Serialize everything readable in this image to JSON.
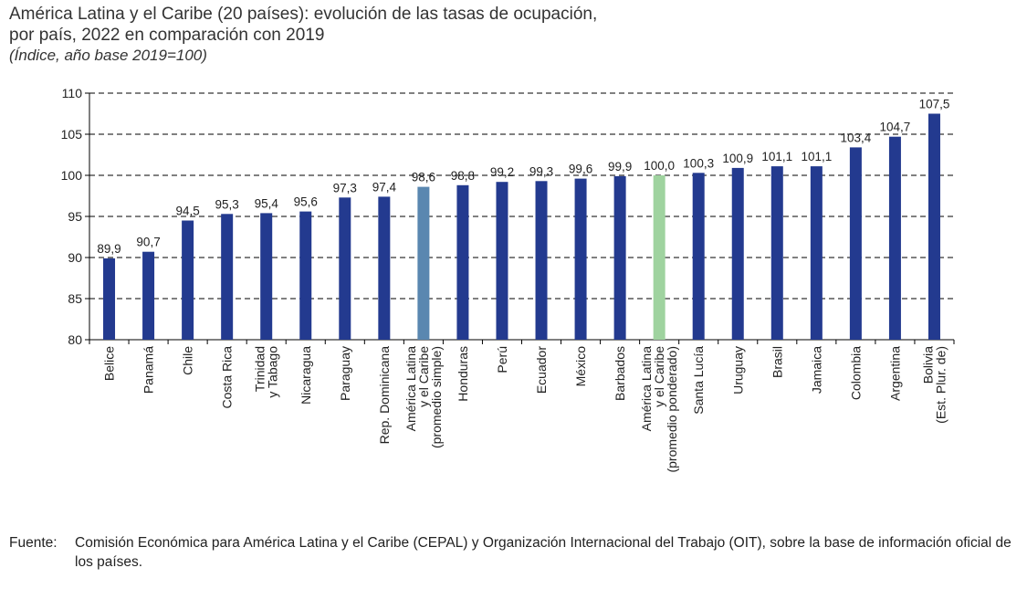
{
  "title_line1": "América Latina y el Caribe (20 países): evolución de las tasas de ocupación,",
  "title_line2": "por país, 2022 en comparación con 2019",
  "subtitle": "(Índice, año base 2019=100)",
  "source_label": "Fuente:",
  "source_text": "Comisión Económica para América Latina y el Caribe (CEPAL) y Organización Internacional del Trabajo (OIT), sobre la base de información oficial de los países.",
  "colors": {
    "country": "#233a8f",
    "simple_average": "#5a87b0",
    "weighted_average": "#9fd39f",
    "grid": "#000000"
  },
  "chart_data": {
    "type": "bar",
    "title": "América Latina y el Caribe (20 países): evolución de las tasas de ocupación, por país, 2022 en comparación con 2019",
    "ylabel": "",
    "xlabel": "",
    "ylim": [
      80,
      110
    ],
    "yticks": [
      "80",
      "85",
      "90",
      "95",
      "100",
      "105",
      "110"
    ],
    "grid": true,
    "categories": [
      [
        "Belice"
      ],
      [
        "Panamá"
      ],
      [
        "Chile"
      ],
      [
        "Costa Rica"
      ],
      [
        "Trinidad",
        "y Tabago"
      ],
      [
        "Nicaragua"
      ],
      [
        "Paraguay"
      ],
      [
        "Rep. Dominicana"
      ],
      [
        "América Latina",
        "y el Caribe",
        "(promedio simple)"
      ],
      [
        "Honduras"
      ],
      [
        "Perú"
      ],
      [
        "Ecuador"
      ],
      [
        "México"
      ],
      [
        "Barbados"
      ],
      [
        "América Latina",
        "y el Caribe",
        "(promedio ponderado)"
      ],
      [
        "Santa Lucía"
      ],
      [
        "Uruguay"
      ],
      [
        "Brasil"
      ],
      [
        "Jamaica"
      ],
      [
        "Colombia"
      ],
      [
        "Argentina"
      ],
      [
        "Bolivia",
        "(Est. Plur. de)"
      ]
    ],
    "values": [
      89.9,
      90.7,
      94.5,
      95.3,
      95.4,
      95.6,
      97.3,
      97.4,
      98.6,
      98.8,
      99.2,
      99.3,
      99.6,
      99.9,
      100.0,
      100.3,
      100.9,
      101.1,
      101.1,
      103.4,
      104.7,
      107.5
    ],
    "data_labels": [
      "89,9",
      "90,7",
      "94,5",
      "95,3",
      "95,4",
      "95,6",
      "97,3",
      "97,4",
      "98,6",
      "98,8",
      "99,2",
      "99,3",
      "99,6",
      "99,9",
      "100,0",
      "100,3",
      "100,9",
      "101,1",
      "101,1",
      "103,4",
      "104,7",
      "107,5"
    ],
    "bar_kind": [
      "country",
      "country",
      "country",
      "country",
      "country",
      "country",
      "country",
      "country",
      "simple_average",
      "country",
      "country",
      "country",
      "country",
      "country",
      "weighted_average",
      "country",
      "country",
      "country",
      "country",
      "country",
      "country",
      "country"
    ]
  }
}
